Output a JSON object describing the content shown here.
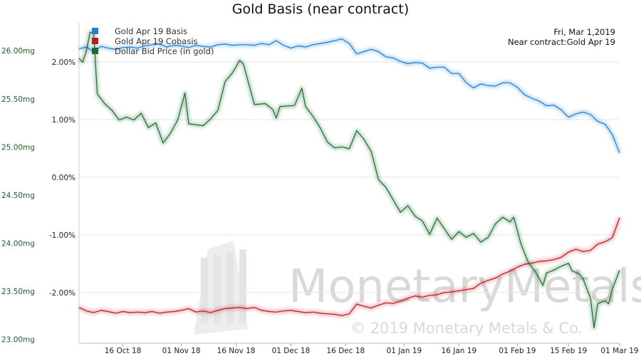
{
  "chart_data": {
    "type": "line",
    "title": "Gold Basis (near contract)",
    "info": {
      "date": "Fri, Mar 1,2019",
      "contract": "Near contract:Gold Apr 19"
    },
    "x_ticks": [
      "16 Oct 18",
      "01 Nov 18",
      "16 Nov 18",
      "01 Dec 18",
      "16 Dec 18",
      "01 Jan 19",
      "16 Jan 19",
      "01 Feb 19",
      "15 Feb 19",
      "01 Mar 19"
    ],
    "x_range": [
      "2018-10-04",
      "2019-03-01"
    ],
    "left_axis": {
      "ticks": [
        "23.00mg",
        "23.50mg",
        "24.00mg",
        "24.50mg",
        "25.00mg",
        "25.50mg",
        "26.00mg"
      ],
      "range": [
        22.96,
        26.29
      ]
    },
    "right_axis": {
      "ticks": [
        "-2.00%",
        "-1.00%",
        "0.00%",
        "1.00%",
        "2.00%"
      ],
      "range": [
        -2.88,
        2.68
      ]
    },
    "watermark": {
      "brand": "MonetaryMetals",
      "copyright": "© 2019 Monetary Metals & Co."
    },
    "series": [
      {
        "name": "Gold Apr 19 Basis",
        "color": "#1f7fd1",
        "axis": "right",
        "points": [
          [
            "2018-10-04",
            2.23
          ],
          [
            "2018-10-06",
            2.26
          ],
          [
            "2018-10-08",
            2.18
          ],
          [
            "2018-10-10",
            2.27
          ],
          [
            "2018-10-12",
            2.24
          ],
          [
            "2018-10-14",
            2.22
          ],
          [
            "2018-10-16",
            2.25
          ],
          [
            "2018-10-18",
            2.26
          ],
          [
            "2018-10-20",
            2.24
          ],
          [
            "2018-10-22",
            2.28
          ],
          [
            "2018-10-24",
            2.3
          ],
          [
            "2018-10-26",
            2.31
          ],
          [
            "2018-10-28",
            2.26
          ],
          [
            "2018-10-30",
            2.29
          ],
          [
            "2018-11-01",
            2.28
          ],
          [
            "2018-11-03",
            2.25
          ],
          [
            "2018-11-05",
            2.29
          ],
          [
            "2018-11-07",
            2.27
          ],
          [
            "2018-11-09",
            2.26
          ],
          [
            "2018-11-11",
            2.3
          ],
          [
            "2018-11-13",
            2.31
          ],
          [
            "2018-11-15",
            2.29
          ],
          [
            "2018-11-17",
            2.3
          ],
          [
            "2018-11-19",
            2.3
          ],
          [
            "2018-11-21",
            2.29
          ],
          [
            "2018-11-23",
            2.32
          ],
          [
            "2018-11-25",
            2.3
          ],
          [
            "2018-11-27",
            2.37
          ],
          [
            "2018-11-29",
            2.29
          ],
          [
            "2018-12-01",
            2.24
          ],
          [
            "2018-12-03",
            2.28
          ],
          [
            "2018-12-05",
            2.26
          ],
          [
            "2018-12-07",
            2.3
          ],
          [
            "2018-12-09",
            2.32
          ],
          [
            "2018-12-11",
            2.34
          ],
          [
            "2018-12-13",
            2.37
          ],
          [
            "2018-12-15",
            2.4
          ],
          [
            "2018-12-17",
            2.32
          ],
          [
            "2018-12-19",
            2.14
          ],
          [
            "2018-12-21",
            2.18
          ],
          [
            "2018-12-23",
            2.22
          ],
          [
            "2018-12-25",
            2.18
          ],
          [
            "2018-12-27",
            2.09
          ],
          [
            "2018-12-29",
            2.07
          ],
          [
            "2018-12-31",
            2.01
          ],
          [
            "2019-01-02",
            1.97
          ],
          [
            "2019-01-04",
            1.99
          ],
          [
            "2019-01-06",
            1.98
          ],
          [
            "2019-01-08",
            1.89
          ],
          [
            "2019-01-10",
            1.91
          ],
          [
            "2019-01-12",
            1.91
          ],
          [
            "2019-01-14",
            1.8
          ],
          [
            "2019-01-16",
            1.8
          ],
          [
            "2019-01-18",
            1.64
          ],
          [
            "2019-01-20",
            1.55
          ],
          [
            "2019-01-22",
            1.62
          ],
          [
            "2019-01-24",
            1.59
          ],
          [
            "2019-01-26",
            1.58
          ],
          [
            "2019-01-28",
            1.64
          ],
          [
            "2019-01-30",
            1.64
          ],
          [
            "2019-02-01",
            1.56
          ],
          [
            "2019-02-03",
            1.43
          ],
          [
            "2019-02-05",
            1.37
          ],
          [
            "2019-02-07",
            1.32
          ],
          [
            "2019-02-09",
            1.24
          ],
          [
            "2019-02-11",
            1.25
          ],
          [
            "2019-02-13",
            1.17
          ],
          [
            "2019-02-15",
            1.04
          ],
          [
            "2019-02-17",
            1.1
          ],
          [
            "2019-02-19",
            1.13
          ],
          [
            "2019-02-21",
            1.09
          ],
          [
            "2019-02-23",
            0.97
          ],
          [
            "2019-02-25",
            0.92
          ],
          [
            "2019-02-27",
            0.74
          ],
          [
            "2019-03-01",
            0.42
          ]
        ]
      },
      {
        "name": "Gold Apr 19 Cobasis",
        "color": "#c0161e",
        "axis": "right",
        "points": [
          [
            "2018-10-04",
            -2.26
          ],
          [
            "2018-10-06",
            -2.32
          ],
          [
            "2018-10-08",
            -2.35
          ],
          [
            "2018-10-10",
            -2.31
          ],
          [
            "2018-10-12",
            -2.33
          ],
          [
            "2018-10-14",
            -2.36
          ],
          [
            "2018-10-16",
            -2.33
          ],
          [
            "2018-10-18",
            -2.35
          ],
          [
            "2018-10-20",
            -2.34
          ],
          [
            "2018-10-22",
            -2.35
          ],
          [
            "2018-10-24",
            -2.33
          ],
          [
            "2018-10-26",
            -2.36
          ],
          [
            "2018-10-28",
            -2.34
          ],
          [
            "2018-10-30",
            -2.33
          ],
          [
            "2018-11-01",
            -2.31
          ],
          [
            "2018-11-03",
            -2.28
          ],
          [
            "2018-11-05",
            -2.34
          ],
          [
            "2018-11-07",
            -2.32
          ],
          [
            "2018-11-09",
            -2.35
          ],
          [
            "2018-11-11",
            -2.31
          ],
          [
            "2018-11-13",
            -2.28
          ],
          [
            "2018-11-15",
            -2.27
          ],
          [
            "2018-11-17",
            -2.26
          ],
          [
            "2018-11-19",
            -2.28
          ],
          [
            "2018-11-21",
            -2.26
          ],
          [
            "2018-11-23",
            -2.31
          ],
          [
            "2018-11-25",
            -2.33
          ],
          [
            "2018-11-27",
            -2.34
          ],
          [
            "2018-11-29",
            -2.32
          ],
          [
            "2018-12-01",
            -2.31
          ],
          [
            "2018-12-03",
            -2.33
          ],
          [
            "2018-12-05",
            -2.35
          ],
          [
            "2018-12-07",
            -2.34
          ],
          [
            "2018-12-09",
            -2.36
          ],
          [
            "2018-12-11",
            -2.37
          ],
          [
            "2018-12-13",
            -2.38
          ],
          [
            "2018-12-15",
            -2.4
          ],
          [
            "2018-12-17",
            -2.37
          ],
          [
            "2018-12-19",
            -2.2
          ],
          [
            "2018-12-21",
            -2.24
          ],
          [
            "2018-12-23",
            -2.27
          ],
          [
            "2018-12-25",
            -2.22
          ],
          [
            "2018-12-27",
            -2.18
          ],
          [
            "2018-12-29",
            -2.19
          ],
          [
            "2018-12-31",
            -2.15
          ],
          [
            "2019-01-02",
            -2.1
          ],
          [
            "2019-01-04",
            -2.06
          ],
          [
            "2019-01-06",
            -2.08
          ],
          [
            "2019-01-08",
            -2.05
          ],
          [
            "2019-01-10",
            -2.04
          ],
          [
            "2019-01-12",
            -2.0
          ],
          [
            "2019-01-14",
            -1.99
          ],
          [
            "2019-01-16",
            -1.97
          ],
          [
            "2019-01-18",
            -1.95
          ],
          [
            "2019-01-20",
            -1.93
          ],
          [
            "2019-01-22",
            -1.84
          ],
          [
            "2019-01-24",
            -1.79
          ],
          [
            "2019-01-26",
            -1.75
          ],
          [
            "2019-01-28",
            -1.68
          ],
          [
            "2019-01-30",
            -1.63
          ],
          [
            "2019-02-01",
            -1.56
          ],
          [
            "2019-02-03",
            -1.51
          ],
          [
            "2019-02-05",
            -1.49
          ],
          [
            "2019-02-07",
            -1.46
          ],
          [
            "2019-02-09",
            -1.45
          ],
          [
            "2019-02-11",
            -1.43
          ],
          [
            "2019-02-13",
            -1.39
          ],
          [
            "2019-02-15",
            -1.3
          ],
          [
            "2019-02-17",
            -1.25
          ],
          [
            "2019-02-19",
            -1.29
          ],
          [
            "2019-02-21",
            -1.27
          ],
          [
            "2019-02-23",
            -1.16
          ],
          [
            "2019-02-25",
            -1.12
          ],
          [
            "2019-02-27",
            -1.05
          ],
          [
            "2019-03-01",
            -0.7
          ]
        ]
      },
      {
        "name": "Dollar Bid Price (in gold)",
        "color": "#1e6b2f",
        "axis": "left",
        "points": [
          [
            "2018-10-04",
            25.92
          ],
          [
            "2018-10-05",
            25.88
          ],
          [
            "2018-10-06",
            26.0
          ],
          [
            "2018-10-07",
            26.19
          ],
          [
            "2018-10-08",
            26.19
          ],
          [
            "2018-10-09",
            25.55
          ],
          [
            "2018-10-11",
            25.45
          ],
          [
            "2018-10-13",
            25.38
          ],
          [
            "2018-10-15",
            25.28
          ],
          [
            "2018-10-17",
            25.31
          ],
          [
            "2018-10-19",
            25.28
          ],
          [
            "2018-10-21",
            25.35
          ],
          [
            "2018-10-23",
            25.2
          ],
          [
            "2018-10-25",
            25.25
          ],
          [
            "2018-10-27",
            25.04
          ],
          [
            "2018-10-29",
            25.14
          ],
          [
            "2018-10-31",
            25.28
          ],
          [
            "2018-11-02",
            25.56
          ],
          [
            "2018-11-03",
            25.24
          ],
          [
            "2018-11-05",
            25.23
          ],
          [
            "2018-11-07",
            25.22
          ],
          [
            "2018-11-09",
            25.29
          ],
          [
            "2018-11-11",
            25.38
          ],
          [
            "2018-11-13",
            25.68
          ],
          [
            "2018-11-15",
            25.77
          ],
          [
            "2018-11-17",
            25.9
          ],
          [
            "2018-11-18",
            25.86
          ],
          [
            "2018-11-21",
            25.44
          ],
          [
            "2018-11-24",
            25.45
          ],
          [
            "2018-11-26",
            25.39
          ],
          [
            "2018-11-27",
            25.3
          ],
          [
            "2018-11-28",
            25.42
          ],
          [
            "2018-12-02",
            25.43
          ],
          [
            "2018-12-04",
            25.61
          ],
          [
            "2018-12-05",
            25.42
          ],
          [
            "2018-12-07",
            25.32
          ],
          [
            "2018-12-09",
            25.2
          ],
          [
            "2018-12-11",
            25.05
          ],
          [
            "2018-12-13",
            24.99
          ],
          [
            "2018-12-15",
            25.0
          ],
          [
            "2018-12-17",
            24.98
          ],
          [
            "2018-12-19",
            25.17
          ],
          [
            "2018-12-21",
            25.08
          ],
          [
            "2018-12-23",
            24.95
          ],
          [
            "2018-12-25",
            24.66
          ],
          [
            "2018-12-27",
            24.58
          ],
          [
            "2018-12-29",
            24.45
          ],
          [
            "2018-12-31",
            24.32
          ],
          [
            "2019-01-02",
            24.39
          ],
          [
            "2019-01-04",
            24.28
          ],
          [
            "2019-01-06",
            24.23
          ],
          [
            "2019-01-08",
            24.09
          ],
          [
            "2019-01-10",
            24.26
          ],
          [
            "2019-01-12",
            24.15
          ],
          [
            "2019-01-14",
            24.04
          ],
          [
            "2019-01-16",
            24.12
          ],
          [
            "2019-01-18",
            24.06
          ],
          [
            "2019-01-20",
            24.1
          ],
          [
            "2019-01-22",
            24.01
          ],
          [
            "2019-01-24",
            24.06
          ],
          [
            "2019-01-26",
            24.2
          ],
          [
            "2019-01-28",
            24.27
          ],
          [
            "2019-01-30",
            24.22
          ],
          [
            "2019-01-31",
            24.27
          ],
          [
            "2019-02-02",
            23.99
          ],
          [
            "2019-02-04",
            23.8
          ],
          [
            "2019-02-06",
            23.7
          ],
          [
            "2019-02-08",
            23.56
          ],
          [
            "2019-02-09",
            23.69
          ],
          [
            "2019-02-11",
            23.72
          ],
          [
            "2019-02-13",
            23.76
          ],
          [
            "2019-02-15",
            23.79
          ],
          [
            "2019-02-16",
            23.71
          ],
          [
            "2019-02-18",
            23.68
          ],
          [
            "2019-02-19",
            23.63
          ],
          [
            "2019-02-21",
            23.43
          ],
          [
            "2019-02-22",
            23.12
          ],
          [
            "2019-02-23",
            23.37
          ],
          [
            "2019-02-25",
            23.4
          ],
          [
            "2019-02-26",
            23.37
          ],
          [
            "2019-02-27",
            23.52
          ],
          [
            "2019-03-01",
            23.72
          ]
        ]
      }
    ]
  }
}
